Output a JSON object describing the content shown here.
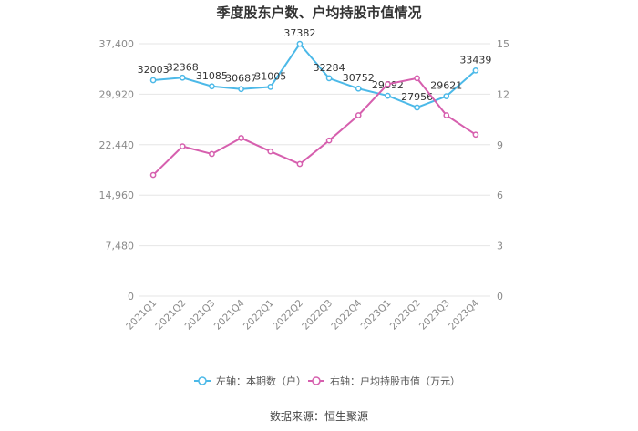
{
  "chart_data": {
    "type": "line",
    "title": "季度股东户数、户均持股市值情况",
    "categories": [
      "2021Q1",
      "2021Q2",
      "2021Q3",
      "2021Q4",
      "2022Q1",
      "2022Q2",
      "2022Q3",
      "2022Q4",
      "2023Q1",
      "2023Q2",
      "2023Q3",
      "2023Q4"
    ],
    "left_axis": {
      "ylim": [
        0,
        37400
      ],
      "ticks": [
        0,
        7480,
        14960,
        22440,
        29920,
        37400
      ],
      "tick_labels": [
        "0",
        "7,480",
        "14,960",
        "22,440",
        "29,920",
        "37,400"
      ]
    },
    "right_axis": {
      "ylim": [
        0,
        15
      ],
      "ticks": [
        0,
        3,
        6,
        9,
        12,
        15
      ],
      "tick_labels": [
        "0",
        "3",
        "6",
        "9",
        "12",
        "15"
      ]
    },
    "series": [
      {
        "name": "左轴：本期数（户）",
        "axis": "left",
        "color": "#4cb9e8",
        "values": [
          32003,
          32368,
          31085,
          30687,
          31005,
          37382,
          32284,
          30752,
          29692,
          27956,
          29621,
          33439
        ],
        "labels": [
          "32003",
          "32368",
          "31085",
          "30687",
          "31005",
          "37382",
          "32284",
          "30752",
          "29692",
          "27956",
          "29621",
          "33439"
        ]
      },
      {
        "name": "右轴：户均持股市值（万元）",
        "axis": "right",
        "color": "#d65fae",
        "values": [
          7.2,
          8.9,
          8.45,
          9.4,
          8.6,
          7.85,
          9.25,
          10.75,
          12.6,
          12.95,
          10.75,
          9.6
        ]
      }
    ],
    "grid": true,
    "legend_position": "bottom"
  },
  "source": "数据来源：恒生聚源"
}
